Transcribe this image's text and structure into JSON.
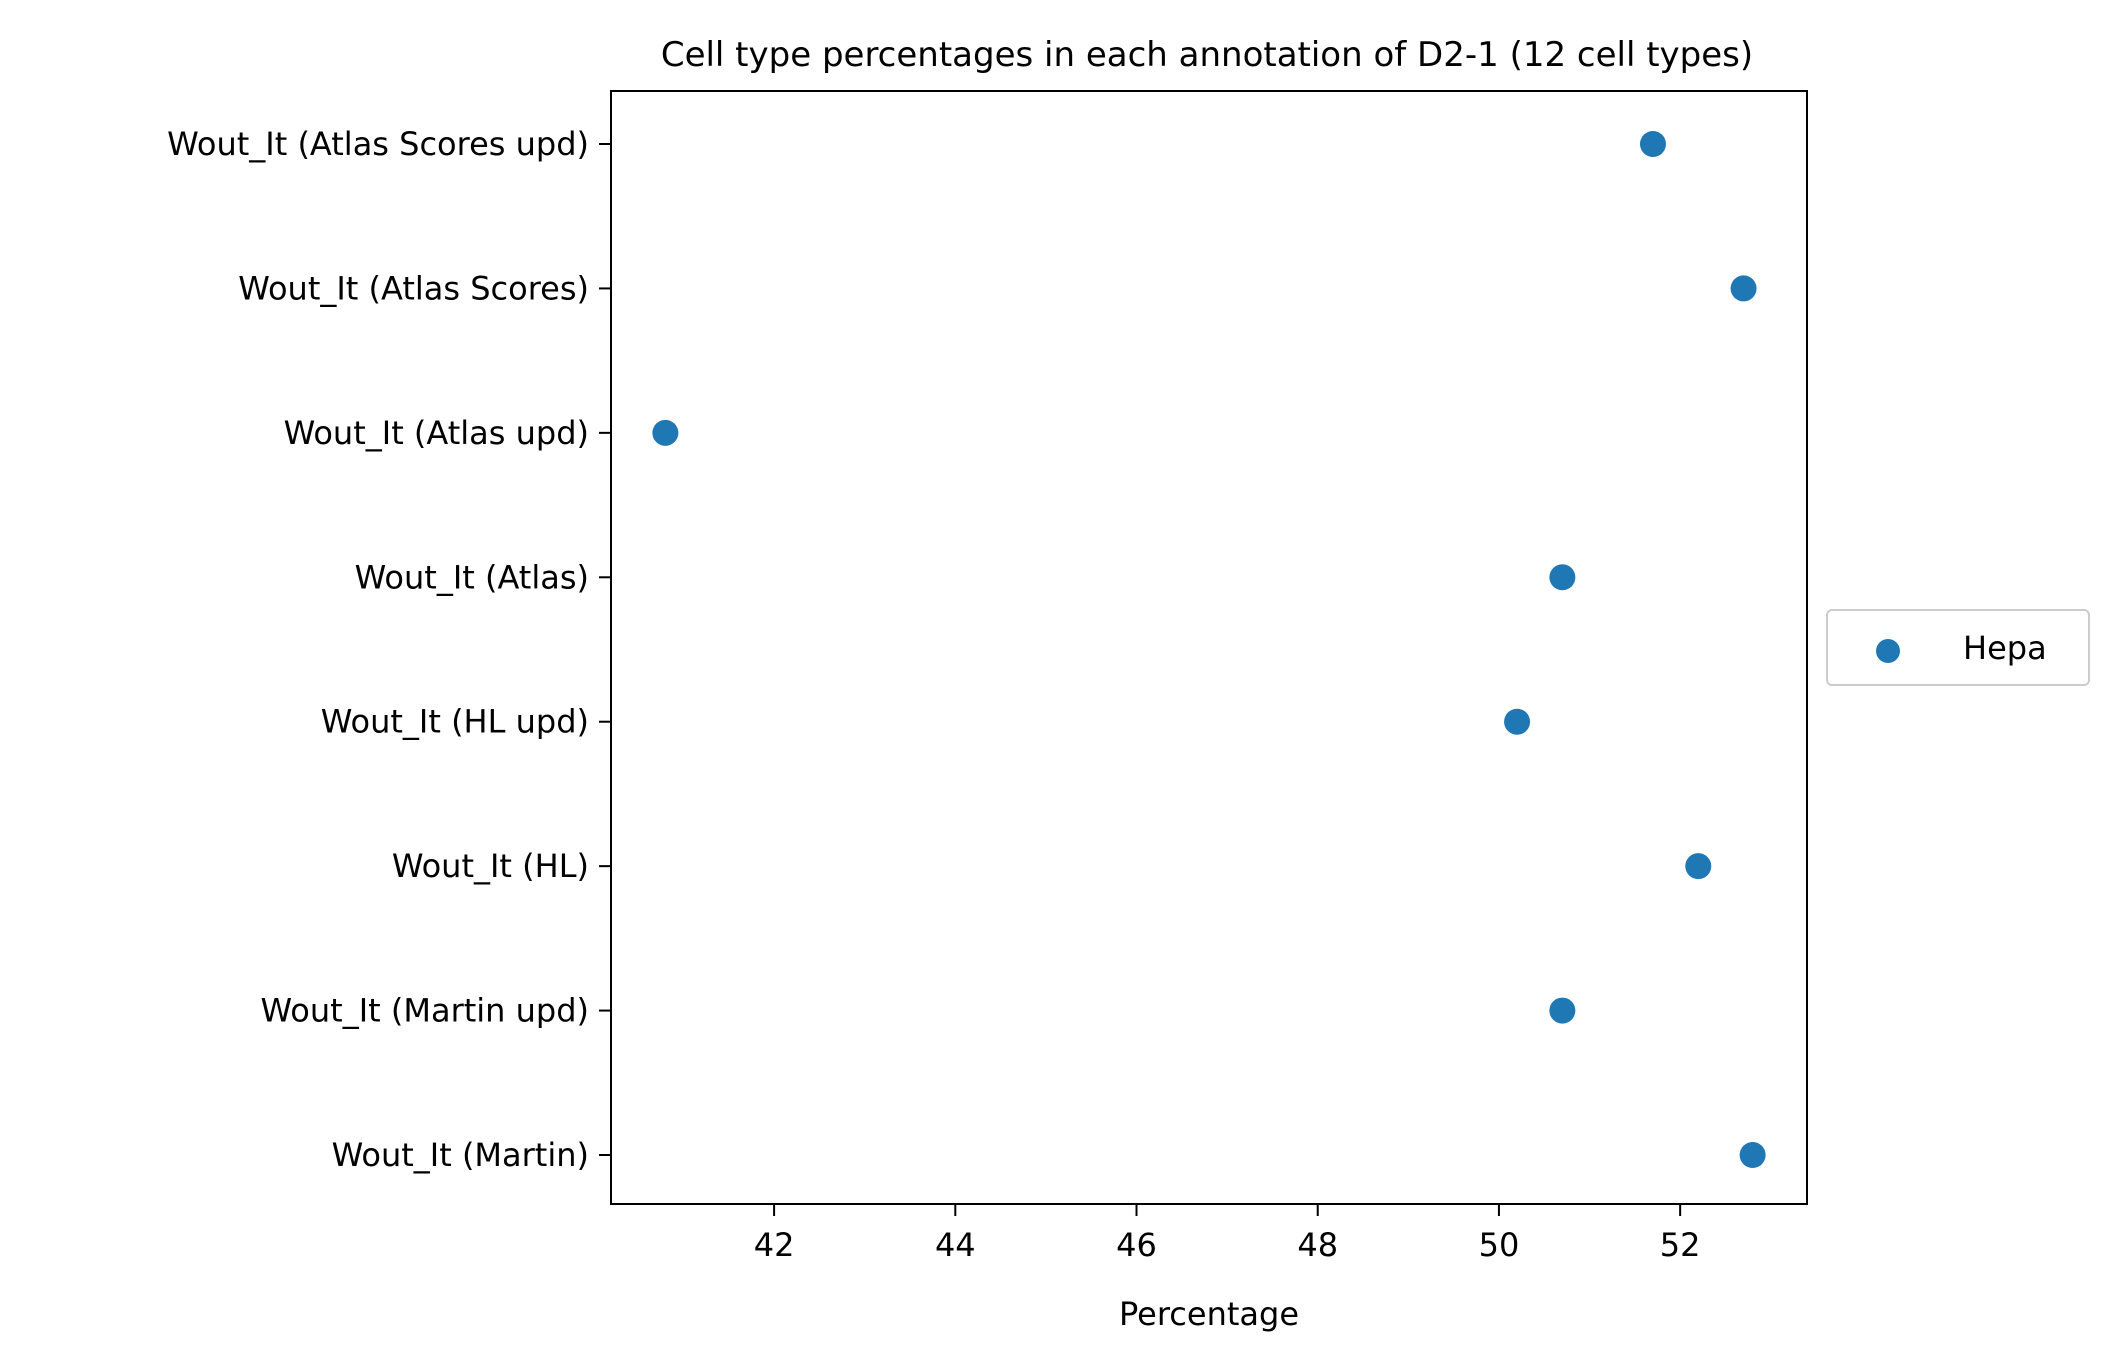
{
  "chart_data": {
    "type": "scatter",
    "title": "Cell type percentages in each annotation of D2-1 (12 cell types)",
    "xlabel": "Percentage",
    "ylabel": "",
    "xlim": [
      40.2,
      53.4
    ],
    "xticks": [
      42,
      44,
      46,
      48,
      50,
      52
    ],
    "xtick_labels": [
      "42",
      "44",
      "46",
      "48",
      "50",
      "52"
    ],
    "categories": [
      "Wout_It (Atlas Scores upd)",
      "Wout_It (Atlas Scores)",
      "Wout_It (Atlas upd)",
      "Wout_It (Atlas)",
      "Wout_It (HL upd)",
      "Wout_It (HL)",
      "Wout_It (Martin upd)",
      "Wout_It (Martin)"
    ],
    "series": [
      {
        "name": "Hepa",
        "color": "#1f77b4",
        "values": [
          51.7,
          52.7,
          40.8,
          50.7,
          50.2,
          52.2,
          50.7,
          52.8
        ]
      }
    ],
    "legend_position": "right",
    "grid": false
  }
}
